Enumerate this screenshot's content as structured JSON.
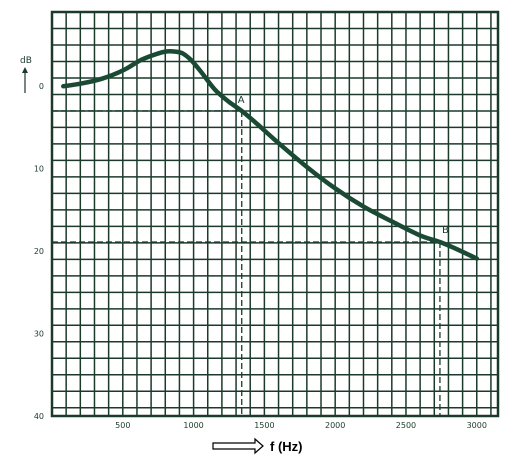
{
  "chart_data": {
    "type": "line",
    "title": "",
    "xlabel": "f (Hz)",
    "ylabel": "dB",
    "xlim": [
      0,
      3150
    ],
    "ylim": [
      40,
      -9
    ],
    "y_inverted": true,
    "grid": true,
    "x_ticks": [
      {
        "value": 500,
        "label": "500"
      },
      {
        "value": 1000,
        "label": "1000"
      },
      {
        "value": 1500,
        "label": "1500"
      },
      {
        "value": 2000,
        "label": "2000"
      },
      {
        "value": 2500,
        "label": "2500"
      },
      {
        "value": 3000,
        "label": "3000"
      }
    ],
    "y_ticks": [
      {
        "value": 0,
        "label": "0"
      },
      {
        "value": 10,
        "label": "10"
      },
      {
        "value": 20,
        "label": "20"
      },
      {
        "value": 30,
        "label": "30"
      },
      {
        "value": 40,
        "label": "40"
      }
    ],
    "series": [
      {
        "x": [
          80,
          200,
          350,
          500,
          620,
          720,
          800,
          870,
          920,
          980,
          1050,
          1150,
          1250,
          1340,
          1450,
          1600,
          1800,
          2000,
          2200,
          2400,
          2600,
          2740,
          2850,
          3000
        ],
        "y": [
          0.0,
          -0.3,
          -0.9,
          -1.9,
          -3.1,
          -3.8,
          -4.2,
          -4.2,
          -4.0,
          -3.2,
          -1.8,
          0.4,
          1.9,
          3.0,
          4.6,
          6.9,
          9.8,
          12.4,
          14.6,
          16.4,
          18.1,
          18.9,
          19.7,
          20.9
        ]
      }
    ],
    "annotations": [
      {
        "label": "A",
        "x": 1340,
        "y": 3.0
      },
      {
        "label": "B",
        "x": 2740,
        "y": 18.9
      }
    ],
    "colors": {
      "grid": "#1c3a2c",
      "curve": "#1a4a33",
      "dashed": "#1c3a2c",
      "arrow": "#000000"
    }
  }
}
